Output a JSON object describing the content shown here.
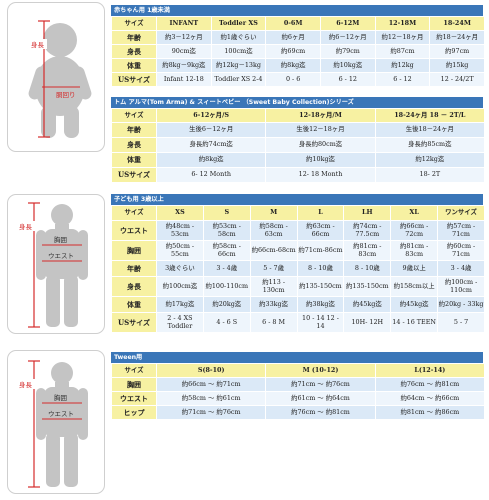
{
  "section1": {
    "header": "赤ちゃん用 1歳未満",
    "figure": {
      "label_height": "身長",
      "label_waist": "胴回り"
    },
    "columns": [
      "サイズ",
      "INFANT",
      "Toddler XS",
      "0-6M",
      "6-12M",
      "12-18M",
      "18-24M"
    ],
    "rows": [
      {
        "label": "年齢",
        "cells": [
          "約3－12ヶ月",
          "約1歳ぐらい",
          "約6ヶ月",
          "約6－12ヶ月",
          "約12－18ヶ月",
          "約18－24ヶ月"
        ]
      },
      {
        "label": "身長",
        "cells": [
          "90cm迄",
          "100cm迄",
          "約69cm",
          "約79cm",
          "約87cm",
          "約97cm"
        ]
      },
      {
        "label": "体重",
        "cells": [
          "約8kg－9kg迄",
          "約12kg－13kg",
          "約8kg迄",
          "約10kg迄",
          "約12kg",
          "約15kg"
        ]
      },
      {
        "label": "USサイズ",
        "cells": [
          "Infant 12-18",
          "Toddler XS 2-4",
          "0 - 6",
          "6 - 12",
          "6 - 12",
          "12 - 24/2T"
        ]
      }
    ]
  },
  "section2": {
    "header": "トム アルマ(Tom Arma) & スィートベビー （Sweet Baby Collection)シリーズ",
    "columns": [
      "サイズ",
      "6-12ヶ月/S",
      "12-18ヶ月/M",
      "18-24ヶ月 18 － 2T/L"
    ],
    "rows": [
      {
        "label": "年齢",
        "cells": [
          "生後6－12ヶ月",
          "生後12－18ヶ月",
          "生後18－24ヶ月"
        ]
      },
      {
        "label": "身長",
        "cells": [
          "身長約74cm迄",
          "身長約80cm迄",
          "身長約85cm迄"
        ]
      },
      {
        "label": "体重",
        "cells": [
          "約8kg迄",
          "約10kg迄",
          "約12kg迄"
        ]
      },
      {
        "label": "USサイズ",
        "cells": [
          "6- 12 Month",
          "12- 18 Month",
          "18- 2T"
        ]
      }
    ]
  },
  "section3": {
    "header": "子ども用 3歳以上",
    "figure": {
      "label_height": "身長",
      "label_chest": "胸囲",
      "label_waist": "ウエスト"
    },
    "columns": [
      "サイズ",
      "XS",
      "S",
      "M",
      "L",
      "LH",
      "XL",
      "ワンサイズ"
    ],
    "rows": [
      {
        "label": "ウエスト",
        "cells": [
          "約48cm - 53cm",
          "約53cm - 58cm",
          "約58cm - 63cm",
          "約63cm - 66cm",
          "約74cm - 77.5cm",
          "約66cm - 72cm",
          "約57cm - 71cm"
        ]
      },
      {
        "label": "胸囲",
        "cells": [
          "約50cm - 55cm",
          "約58cm - 66cm",
          "約66cm-68cm",
          "約71cm-86cm",
          "約81cm - 83cm",
          "約81cm - 83cm",
          "約60cm - 71cm"
        ]
      },
      {
        "label": "年齢",
        "cells": [
          "3歳ぐらい",
          "3 - 4歳",
          "5 - 7歳",
          "8 - 10歳",
          "8 - 10歳",
          "9歳以上",
          "3 - 4歳"
        ]
      },
      {
        "label": "身長",
        "cells": [
          "約100cm迄",
          "約100-110cm",
          "約113 - 130cm",
          "約135-150cm",
          "約135-150cm",
          "約158cm以上",
          "約100cm - 110cm"
        ]
      },
      {
        "label": "体重",
        "cells": [
          "約17kg迄",
          "約20kg迄",
          "約33kg迄",
          "約38kg迄",
          "約45kg迄",
          "約45kg迄",
          "約20kg - 33kg"
        ]
      },
      {
        "label": "USサイズ",
        "cells": [
          "2 - 4 XS Toddler",
          "4 - 6 S",
          "6 - 8 M",
          "10 - 14 12 - 14",
          "10H- 12H",
          "14 - 16 TEEN",
          "5 - 7"
        ]
      }
    ]
  },
  "section4": {
    "header": "Tween用",
    "figure": {
      "label_height": "身長",
      "label_chest": "胸囲",
      "label_waist": "ウエスト"
    },
    "columns": [
      "サイズ",
      "S(8-10)",
      "M (10-12)",
      "L(12-14)"
    ],
    "rows": [
      {
        "label": "胸囲",
        "cells": [
          "約66cm ～ 約71cm",
          "約71cm ～ 約76cm",
          "約76cm ～ 約81cm"
        ]
      },
      {
        "label": "ウエスト",
        "cells": [
          "約58cm ～ 約61cm",
          "約61cm ～ 約64cm",
          "約64cm ～ 約66cm"
        ]
      },
      {
        "label": "ヒップ",
        "cells": [
          "約71cm ～ 約76cm",
          "約76cm ～ 約81cm",
          "約81cm ～ 約86cm"
        ]
      }
    ]
  }
}
